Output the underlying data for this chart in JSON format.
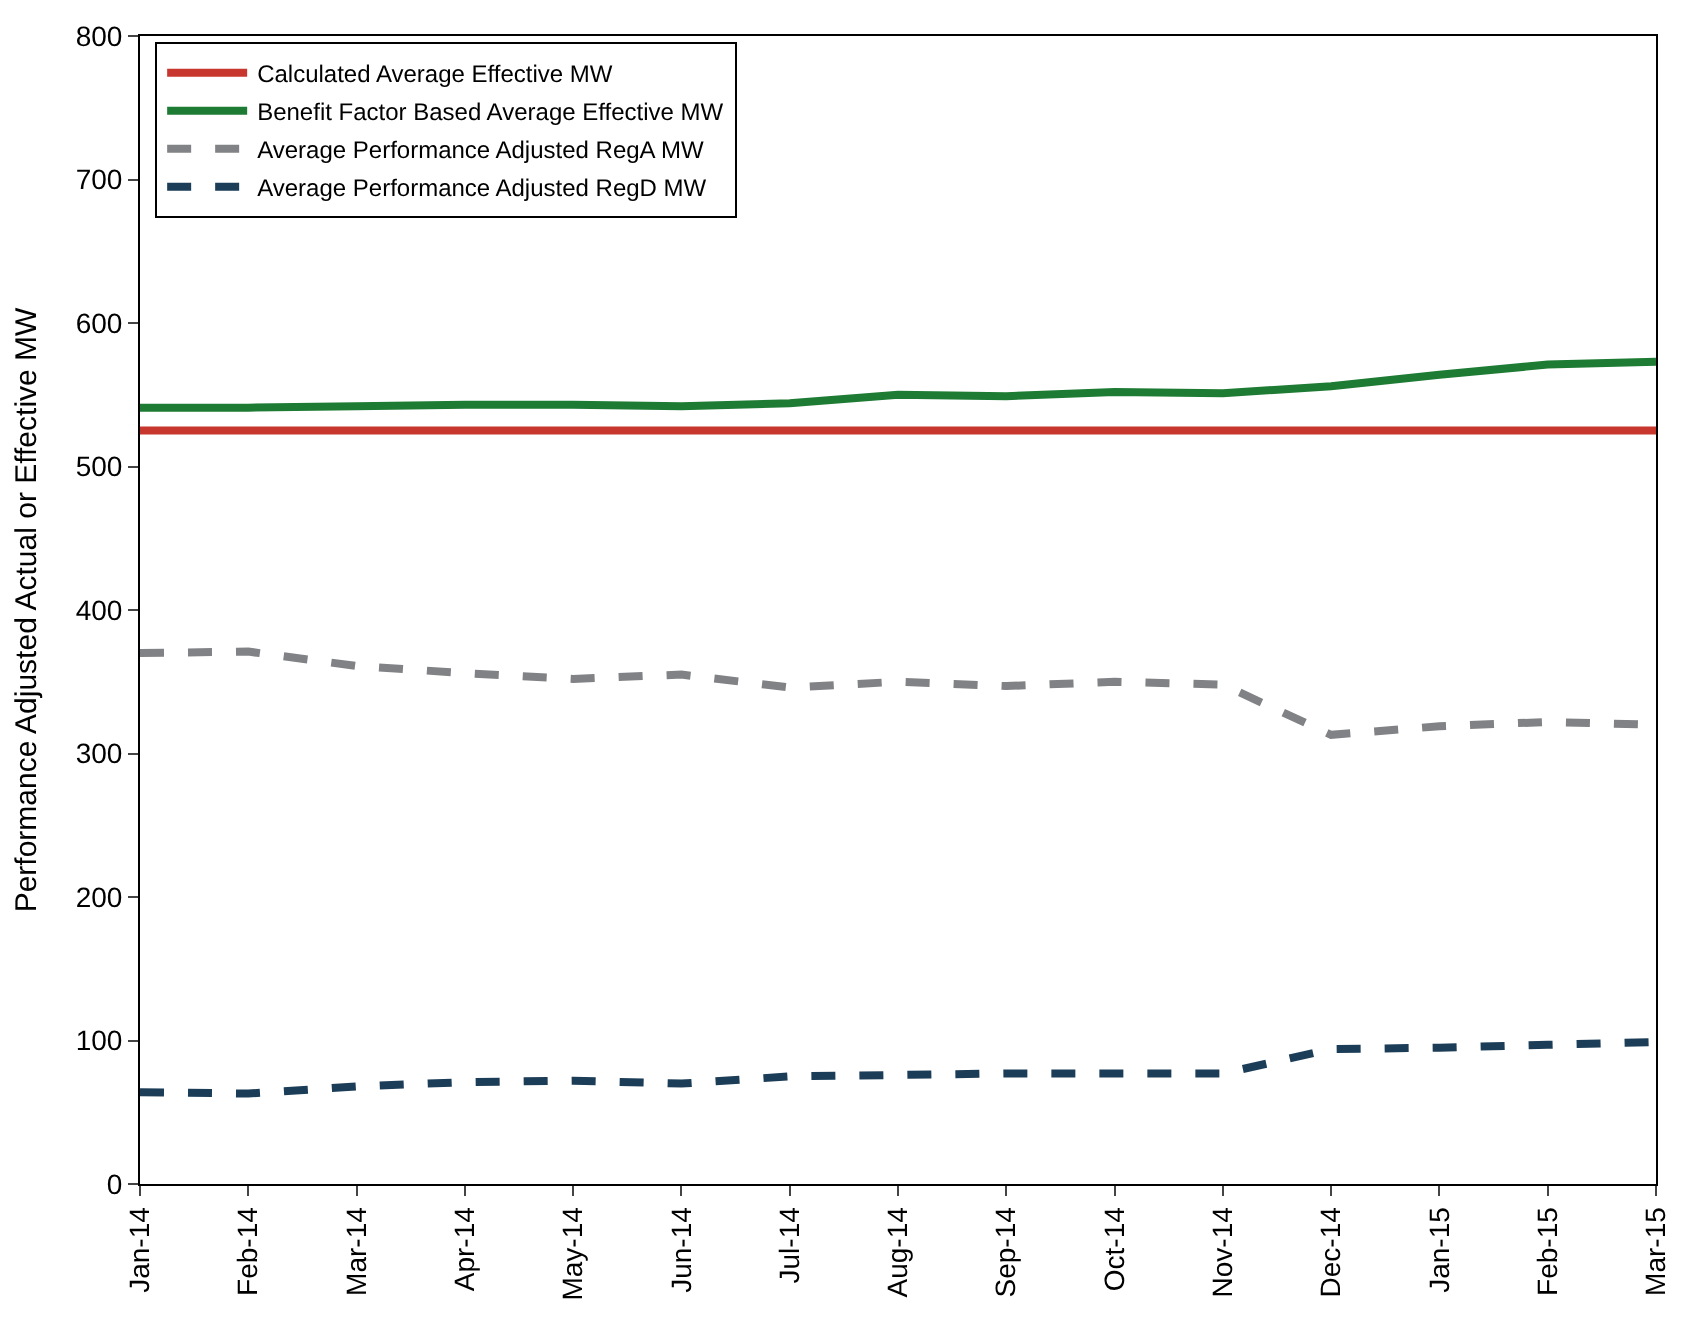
{
  "chart_data": {
    "type": "line",
    "ylabel": "Performance Adjusted Actual or Effective MW",
    "categories": [
      "Jan-14",
      "Feb-14",
      "Mar-14",
      "Apr-14",
      "May-14",
      "Jun-14",
      "Jul-14",
      "Aug-14",
      "Sep-14",
      "Oct-14",
      "Nov-14",
      "Dec-14",
      "Jan-15",
      "Feb-15",
      "Mar-15"
    ],
    "series": [
      {
        "name": "Calculated Average Effective MW",
        "color": "#c8372d",
        "line_style": "solid",
        "values": [
          525,
          525,
          525,
          525,
          525,
          525,
          525,
          525,
          525,
          525,
          525,
          525,
          525,
          525,
          525
        ]
      },
      {
        "name": "Benefit Factor Based Average Effective MW",
        "color": "#1e7b34",
        "line_style": "solid",
        "values": [
          541,
          541,
          542,
          543,
          543,
          542,
          544,
          550,
          549,
          552,
          551,
          556,
          564,
          571,
          573
        ]
      },
      {
        "name": "Average Performance Adjusted RegA MW",
        "color": "#808285",
        "line_style": "dashed",
        "values": [
          370,
          371,
          361,
          356,
          352,
          355,
          346,
          350,
          347,
          350,
          348,
          313,
          319,
          322,
          320
        ]
      },
      {
        "name": "Average Performance Adjusted RegD MW",
        "color": "#1c3d57",
        "line_style": "dashed",
        "values": [
          64,
          63,
          68,
          71,
          72,
          70,
          75,
          76,
          77,
          77,
          77,
          94,
          95,
          97,
          99
        ]
      }
    ],
    "ylim": [
      0,
      800
    ],
    "yticks": [
      0,
      100,
      200,
      300,
      400,
      500,
      600,
      700,
      800
    ],
    "legend": "top left",
    "marker": "none"
  }
}
